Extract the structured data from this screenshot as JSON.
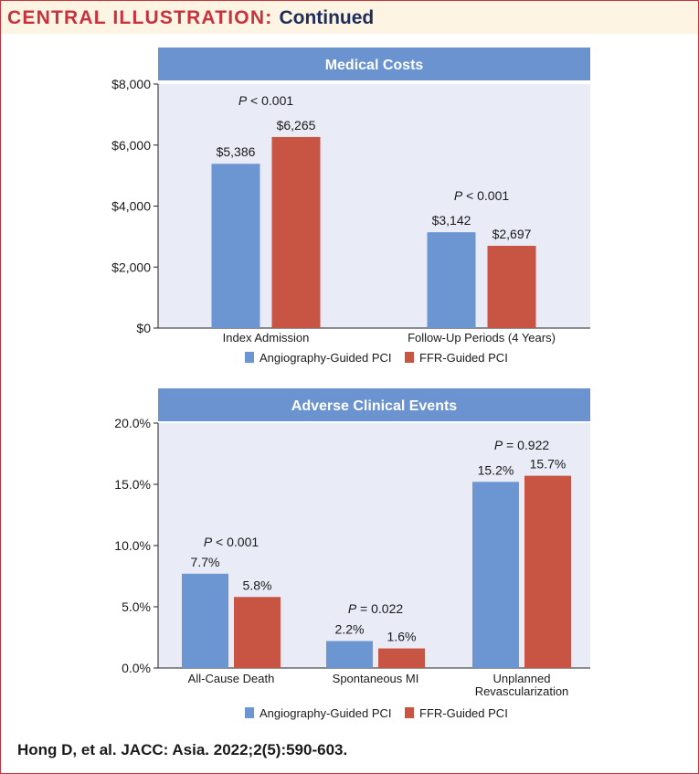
{
  "header": {
    "title": "CENTRAL ILLUSTRATION:",
    "subtitle": "Continued"
  },
  "colors": {
    "header_red": "#c8323c",
    "header_navy": "#1f2d5a",
    "panel_blue": "#6a93cf",
    "plot_bg": "#e9ecf7",
    "angiography": "#6b96d2",
    "ffr": "#c85443"
  },
  "chart_data": [
    {
      "type": "bar",
      "title": "Medical Costs",
      "categories": [
        "Index Admission",
        "Follow-Up Periods (4 Years)"
      ],
      "series": [
        {
          "name": "Angiography-Guided PCI",
          "values": [
            5386,
            3142
          ],
          "labels": [
            "$5,386",
            "$3,142"
          ]
        },
        {
          "name": "FFR-Guided PCI",
          "values": [
            6265,
            2697
          ],
          "labels": [
            "$6,265",
            "$2,697"
          ]
        }
      ],
      "p_values": [
        {
          "prefix": "P",
          "text": " < 0.001"
        },
        {
          "prefix": "P",
          "text": " < 0.001"
        }
      ],
      "yticks": [
        0,
        2000,
        4000,
        6000,
        8000
      ],
      "ytick_labels": [
        "$0",
        "$2,000",
        "$4,000",
        "$6,000",
        "$8,000"
      ],
      "ylim": [
        0,
        8000
      ],
      "xlabel": "",
      "ylabel": "",
      "legend": [
        "Angiography-Guided PCI",
        "FFR-Guided PCI"
      ]
    },
    {
      "type": "bar",
      "title": "Adverse Clinical Events",
      "categories": [
        "All-Cause Death",
        "Spontaneous MI",
        "Unplanned Revascularization"
      ],
      "category_lines": [
        [
          "All-Cause Death"
        ],
        [
          "Spontaneous MI"
        ],
        [
          "Unplanned",
          "Revascularization"
        ]
      ],
      "series": [
        {
          "name": "Angiography-Guided PCI",
          "values": [
            7.7,
            2.2,
            15.2
          ],
          "labels": [
            "7.7%",
            "2.2%",
            "15.2%"
          ]
        },
        {
          "name": "FFR-Guided PCI",
          "values": [
            5.8,
            1.6,
            15.7
          ],
          "labels": [
            "5.8%",
            "1.6%",
            "15.7%"
          ]
        }
      ],
      "p_values": [
        {
          "prefix": "P",
          "text": " < 0.001"
        },
        {
          "prefix": "P",
          "text": " = 0.022"
        },
        {
          "prefix": "P",
          "text": " = 0.922"
        }
      ],
      "yticks": [
        0,
        5,
        10,
        15,
        20
      ],
      "ytick_labels": [
        "0.0%",
        "5.0%",
        "10.0%",
        "15.0%",
        "20.0%"
      ],
      "ylim": [
        0,
        20
      ],
      "xlabel": "",
      "ylabel": "",
      "legend": [
        "Angiography-Guided PCI",
        "FFR-Guided PCI"
      ]
    }
  ],
  "citation": "Hong D, et al. JACC: Asia. 2022;2(5):590-603."
}
